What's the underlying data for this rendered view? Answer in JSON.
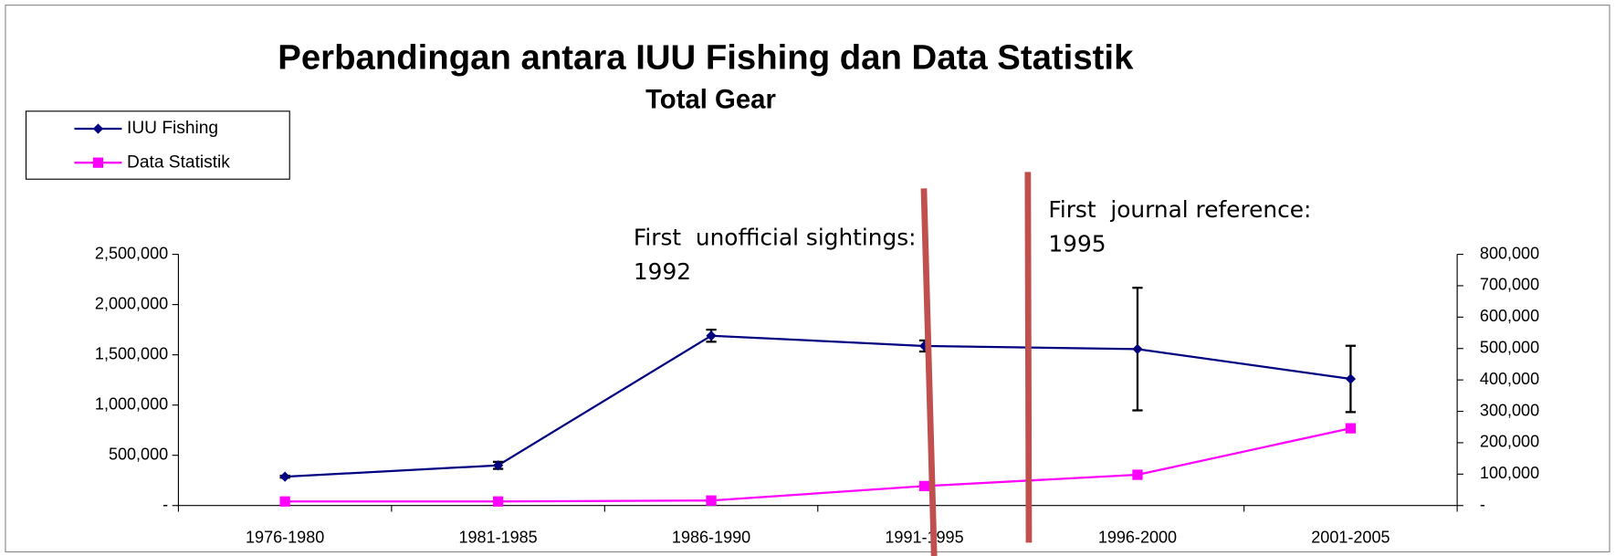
{
  "chart_data": {
    "type": "line",
    "title": "Perbandingan antara IUU Fishing dan Data Statistik",
    "subtitle": "Total Gear",
    "categories": [
      "1976-1980",
      "1981-1985",
      "1986-1990",
      "1991-1995",
      "1996-2000",
      "2001-2005"
    ],
    "series": [
      {
        "name": "IUU Fishing",
        "color": "#000080",
        "marker": "diamond",
        "axis": "y",
        "values": [
          287000,
          400000,
          1690000,
          1588000,
          1557000,
          1260000
        ],
        "errors": [
          10000,
          35000,
          60000,
          55000,
          610000,
          330000
        ]
      },
      {
        "name": "Data Statistik",
        "color": "#ff00ff",
        "marker": "square",
        "axis": "y2",
        "values": [
          13000,
          13000,
          16000,
          62000,
          98000,
          246000
        ]
      }
    ],
    "ylim": [
      0,
      2500000
    ],
    "yticks": [
      {
        "value": 0,
        "label": "-"
      },
      {
        "value": 500000,
        "label": "500,000"
      },
      {
        "value": 1000000,
        "label": "1,000,000"
      },
      {
        "value": 1500000,
        "label": "1,500,000"
      },
      {
        "value": 2000000,
        "label": "2,000,000"
      },
      {
        "value": 2500000,
        "label": "2,500,000"
      }
    ],
    "y2lim": [
      0,
      800000
    ],
    "y2ticks": [
      {
        "value": 0,
        "label": "-"
      },
      {
        "value": 100000,
        "label": "100,000"
      },
      {
        "value": 200000,
        "label": "200,000"
      },
      {
        "value": 300000,
        "label": "300,000"
      },
      {
        "value": 400000,
        "label": "400,000"
      },
      {
        "value": 500000,
        "label": "500,000"
      },
      {
        "value": 600000,
        "label": "600,000"
      },
      {
        "value": 700000,
        "label": "700,000"
      },
      {
        "value": 800000,
        "label": "800,000"
      }
    ],
    "legend": "top-left",
    "annotations": [
      {
        "lines": [
          "First  unofficial sightings:",
          "1992"
        ]
      },
      {
        "lines": [
          "First  journal reference:",
          "1995"
        ]
      }
    ]
  }
}
